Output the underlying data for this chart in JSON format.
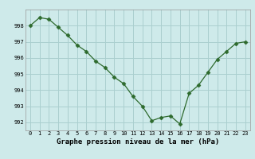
{
  "x": [
    0,
    1,
    2,
    3,
    4,
    5,
    6,
    7,
    8,
    9,
    10,
    11,
    12,
    13,
    14,
    15,
    16,
    17,
    18,
    19,
    20,
    21,
    22,
    23
  ],
  "y": [
    998.0,
    998.5,
    998.4,
    997.9,
    997.4,
    996.8,
    996.4,
    995.8,
    995.4,
    994.8,
    994.4,
    993.6,
    993.0,
    992.1,
    992.3,
    992.4,
    991.9,
    993.8,
    994.3,
    995.1,
    995.9,
    996.4,
    996.9,
    997.0
  ],
  "line_color": "#2d6a2d",
  "marker": "D",
  "marker_size": 2.5,
  "bg_color": "#ceeaea",
  "grid_color": "#aacfcf",
  "xlabel": "Graphe pression niveau de la mer (hPa)",
  "ylim": [
    991.5,
    999.0
  ],
  "xlim": [
    -0.5,
    23.5
  ],
  "yticks": [
    992,
    993,
    994,
    995,
    996,
    997,
    998
  ],
  "xticks": [
    0,
    1,
    2,
    3,
    4,
    5,
    6,
    7,
    8,
    9,
    10,
    11,
    12,
    13,
    14,
    15,
    16,
    17,
    18,
    19,
    20,
    21,
    22,
    23
  ],
  "tick_fontsize": 5.0,
  "xlabel_fontsize": 6.5
}
